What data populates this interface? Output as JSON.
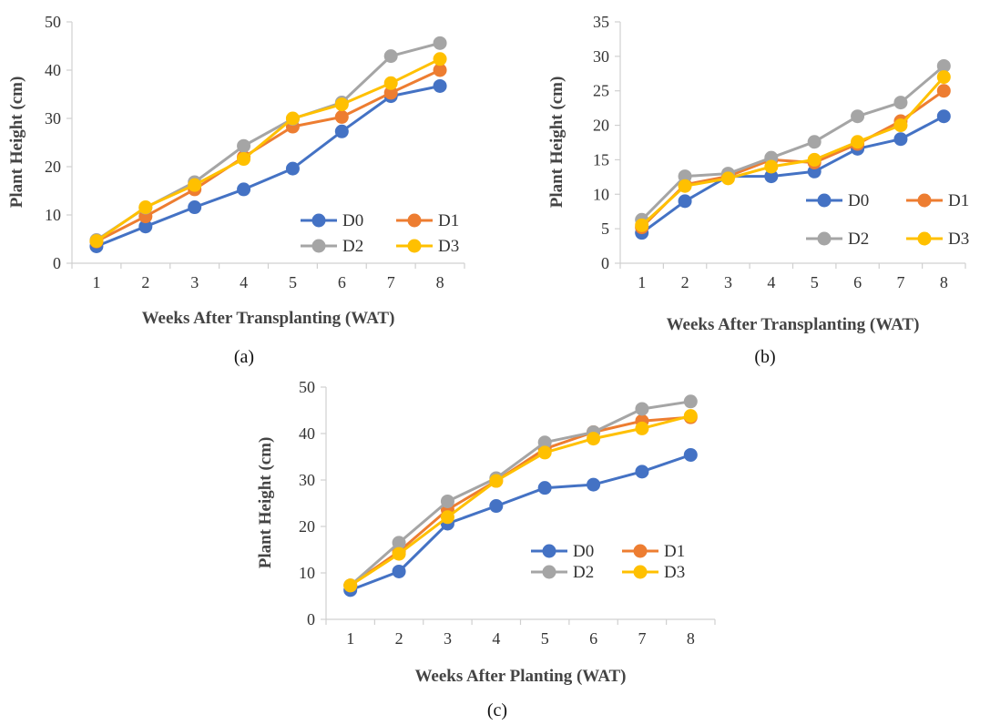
{
  "figure": {
    "panels": [
      "(a)",
      "(b)",
      "(c)"
    ]
  },
  "colors": {
    "D0": "#4472C4",
    "D1": "#ED7D31",
    "D2": "#A5A5A5",
    "D3": "#FFC000"
  },
  "chart_data": [
    {
      "type": "line",
      "panel": "(a)",
      "title": "",
      "xlabel": "Weeks After Transplanting (WAT)",
      "ylabel": "Plant Height (cm)",
      "x": [
        1,
        2,
        3,
        4,
        5,
        6,
        7,
        8
      ],
      "ylim": [
        0,
        50
      ],
      "yticks": [
        0,
        10,
        20,
        30,
        40,
        50
      ],
      "grid": false,
      "legend_position": "bottom-right",
      "series": [
        {
          "name": "D0",
          "values": [
            3.5,
            7.6,
            11.6,
            15.3,
            19.6,
            27.3,
            34.6,
            36.7
          ]
        },
        {
          "name": "D1",
          "values": [
            4.5,
            9.7,
            15.3,
            22.0,
            28.3,
            30.3,
            35.3,
            40.0
          ]
        },
        {
          "name": "D2",
          "values": [
            4.8,
            11.5,
            16.8,
            24.3,
            29.9,
            33.3,
            42.9,
            45.6
          ]
        },
        {
          "name": "D3",
          "values": [
            4.6,
            11.6,
            16.2,
            21.6,
            30.0,
            32.9,
            37.3,
            42.3
          ]
        }
      ]
    },
    {
      "type": "line",
      "panel": "(b)",
      "title": "",
      "xlabel": "Weeks After Transplanting (WAT)",
      "ylabel": "Plant Height (cm)",
      "x": [
        1,
        2,
        3,
        4,
        5,
        6,
        7,
        8
      ],
      "ylim": [
        0,
        35
      ],
      "yticks": [
        0,
        5,
        10,
        15,
        20,
        25,
        30,
        35
      ],
      "grid": false,
      "legend_position": "bottom-right",
      "series": [
        {
          "name": "D0",
          "values": [
            4.4,
            9.0,
            12.6,
            12.6,
            13.3,
            16.6,
            18.0,
            21.3
          ]
        },
        {
          "name": "D1",
          "values": [
            5.2,
            11.4,
            12.6,
            15.0,
            14.6,
            17.3,
            20.6,
            25.0
          ]
        },
        {
          "name": "D2",
          "values": [
            6.3,
            12.6,
            13.0,
            15.3,
            17.6,
            21.3,
            23.3,
            28.6
          ]
        },
        {
          "name": "D3",
          "values": [
            5.5,
            11.2,
            12.3,
            14.0,
            15.0,
            17.6,
            20.0,
            27.0
          ]
        }
      ]
    },
    {
      "type": "line",
      "panel": "(c)",
      "title": "",
      "xlabel": "Weeks After Planting (WAT)",
      "ylabel": "Plant Height (cm)",
      "x": [
        1,
        2,
        3,
        4,
        5,
        6,
        7,
        8
      ],
      "ylim": [
        0,
        50
      ],
      "yticks": [
        0,
        10,
        20,
        30,
        40,
        50
      ],
      "grid": false,
      "legend_position": "center-right",
      "series": [
        {
          "name": "D0",
          "values": [
            6.3,
            10.3,
            20.6,
            24.4,
            28.3,
            29.0,
            31.8,
            35.4
          ]
        },
        {
          "name": "D1",
          "values": [
            7.3,
            14.6,
            23.6,
            29.8,
            36.7,
            40.3,
            42.7,
            43.5
          ]
        },
        {
          "name": "D2",
          "values": [
            7.3,
            16.5,
            25.4,
            30.4,
            38.1,
            40.3,
            45.3,
            46.9
          ]
        },
        {
          "name": "D3",
          "values": [
            7.3,
            14.1,
            22.0,
            29.8,
            35.9,
            38.9,
            41.1,
            43.8
          ]
        }
      ]
    }
  ]
}
